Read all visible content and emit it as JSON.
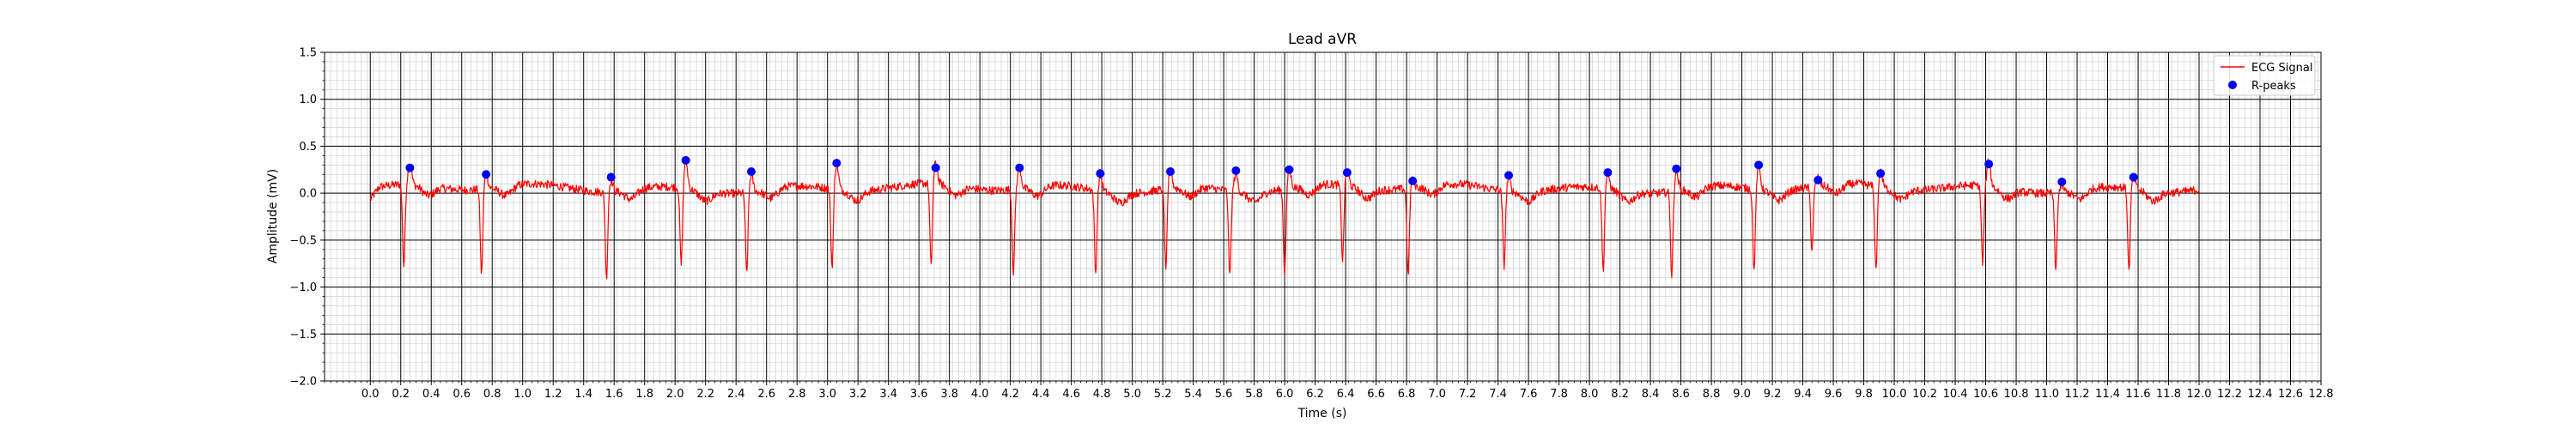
{
  "chart_data": {
    "type": "line",
    "title": "Lead aVR",
    "xlabel": "Time (s)",
    "ylabel": "Amplitude (mV)",
    "xlim": [
      -0.3,
      12.8
    ],
    "ylim": [
      -2.0,
      1.5
    ],
    "x_ticks": [
      "0.0",
      "0.2",
      "0.4",
      "0.6",
      "0.8",
      "1.0",
      "1.2",
      "1.4",
      "1.6",
      "1.8",
      "2.0",
      "2.2",
      "2.4",
      "2.6",
      "2.8",
      "3.0",
      "3.2",
      "3.4",
      "3.6",
      "3.8",
      "4.0",
      "4.2",
      "4.4",
      "4.6",
      "4.8",
      "5.0",
      "5.2",
      "5.4",
      "5.6",
      "5.8",
      "6.0",
      "6.2",
      "6.4",
      "6.6",
      "6.8",
      "7.0",
      "7.2",
      "7.4",
      "7.6",
      "7.8",
      "8.0",
      "8.2",
      "8.4",
      "8.6",
      "8.8",
      "9.0",
      "9.2",
      "9.4",
      "9.6",
      "9.8",
      "10.0",
      "10.2",
      "10.4",
      "10.6",
      "10.8",
      "11.0",
      "11.2",
      "11.4",
      "11.6",
      "11.8",
      "12.0",
      "12.2",
      "12.4",
      "12.6",
      "12.8"
    ],
    "y_ticks": [
      "−2.0",
      "−1.5",
      "−1.0",
      "−0.5",
      "0.0",
      "0.5",
      "1.0",
      "1.5"
    ],
    "grid": {
      "major_x_step": 0.2,
      "major_y_step": 0.5,
      "minor_x_step": 0.04,
      "minor_y_step": 0.1,
      "major_color": "#000000",
      "minor_color": "#c8c8c8"
    },
    "legend": {
      "position": "top-right",
      "entries": [
        {
          "label": "ECG Signal",
          "color": "#ff0000",
          "kind": "line"
        },
        {
          "label": "R-peaks",
          "color": "#0000ff",
          "kind": "marker"
        }
      ]
    },
    "series": [
      {
        "name": "ECG Signal",
        "color": "#ff0000",
        "x_start": 0.0,
        "x_end": 12.0,
        "baseline": 0.05,
        "beats": [
          {
            "t": 0.22,
            "amp": -0.82
          },
          {
            "t": 0.73,
            "amp": -0.86
          },
          {
            "t": 1.55,
            "amp": -0.87
          },
          {
            "t": 2.04,
            "amp": -0.78
          },
          {
            "t": 2.47,
            "amp": -0.82
          },
          {
            "t": 3.03,
            "amp": -0.79
          },
          {
            "t": 3.68,
            "amp": -0.85
          },
          {
            "t": 4.22,
            "amp": -0.83
          },
          {
            "t": 4.76,
            "amp": -0.85
          },
          {
            "t": 5.22,
            "amp": -0.8
          },
          {
            "t": 5.64,
            "amp": -0.87
          },
          {
            "t": 6.0,
            "amp": -0.85
          },
          {
            "t": 6.38,
            "amp": -0.75
          },
          {
            "t": 6.81,
            "amp": -0.88
          },
          {
            "t": 7.44,
            "amp": -0.75
          },
          {
            "t": 8.09,
            "amp": -0.83
          },
          {
            "t": 8.54,
            "amp": -0.86
          },
          {
            "t": 9.08,
            "amp": -0.82
          },
          {
            "t": 9.46,
            "amp": -0.63
          },
          {
            "t": 9.88,
            "amp": -0.85
          },
          {
            "t": 10.58,
            "amp": -0.78
          },
          {
            "t": 11.06,
            "amp": -0.79
          },
          {
            "t": 11.54,
            "amp": -0.85
          }
        ]
      },
      {
        "name": "R-peaks",
        "color": "#0000ff",
        "points": [
          {
            "x": 0.26,
            "y": 0.27
          },
          {
            "x": 0.76,
            "y": 0.2
          },
          {
            "x": 1.58,
            "y": 0.17
          },
          {
            "x": 2.07,
            "y": 0.35
          },
          {
            "x": 2.5,
            "y": 0.23
          },
          {
            "x": 3.06,
            "y": 0.32
          },
          {
            "x": 3.71,
            "y": 0.27
          },
          {
            "x": 4.26,
            "y": 0.27
          },
          {
            "x": 4.79,
            "y": 0.21
          },
          {
            "x": 5.25,
            "y": 0.23
          },
          {
            "x": 5.68,
            "y": 0.24
          },
          {
            "x": 6.03,
            "y": 0.25
          },
          {
            "x": 6.41,
            "y": 0.22
          },
          {
            "x": 6.84,
            "y": 0.13
          },
          {
            "x": 7.47,
            "y": 0.19
          },
          {
            "x": 8.12,
            "y": 0.22
          },
          {
            "x": 8.57,
            "y": 0.26
          },
          {
            "x": 9.11,
            "y": 0.3
          },
          {
            "x": 9.5,
            "y": 0.14
          },
          {
            "x": 9.91,
            "y": 0.21
          },
          {
            "x": 10.62,
            "y": 0.31
          },
          {
            "x": 11.1,
            "y": 0.12
          },
          {
            "x": 11.57,
            "y": 0.17
          }
        ]
      }
    ]
  }
}
